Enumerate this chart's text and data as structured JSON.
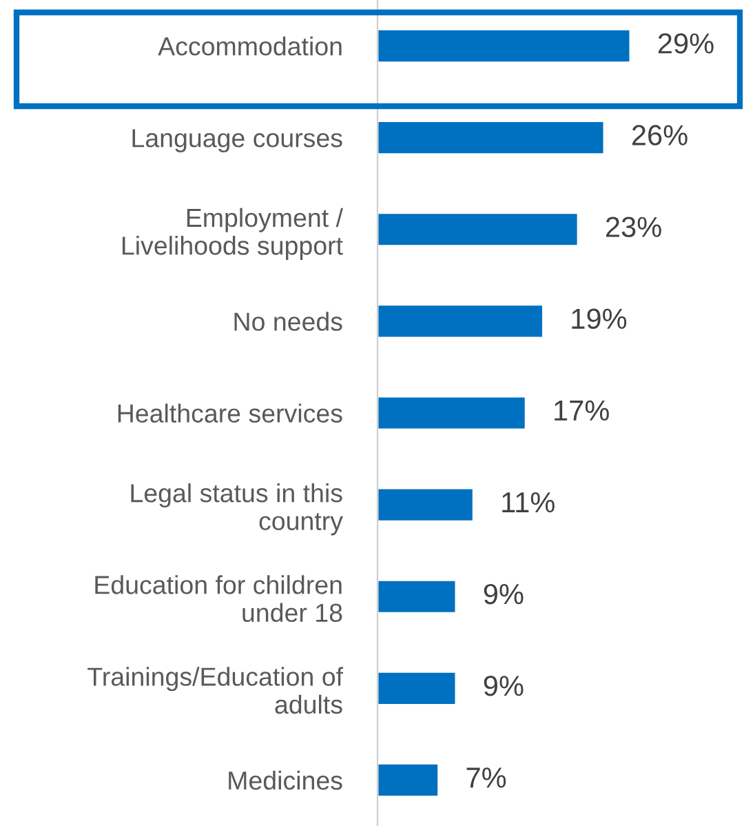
{
  "chart_data": {
    "type": "bar",
    "orientation": "horizontal",
    "categories": [
      "Accommodation",
      "Language courses",
      "Employment /\nLivelihoods support",
      "No needs",
      "Healthcare services",
      "Legal status in this\ncountry",
      "Education for children\nunder 18",
      "Trainings/Education of\nadults",
      "Medicines"
    ],
    "values": [
      29,
      26,
      23,
      19,
      17,
      11,
      9,
      9,
      7
    ],
    "value_labels": [
      "29%",
      "26%",
      "23%",
      "19%",
      "17%",
      "11%",
      "9%",
      "9%",
      "7%"
    ],
    "color": "#0070c0",
    "grid": false,
    "legend": false,
    "tick_labels": "y"
  }
}
